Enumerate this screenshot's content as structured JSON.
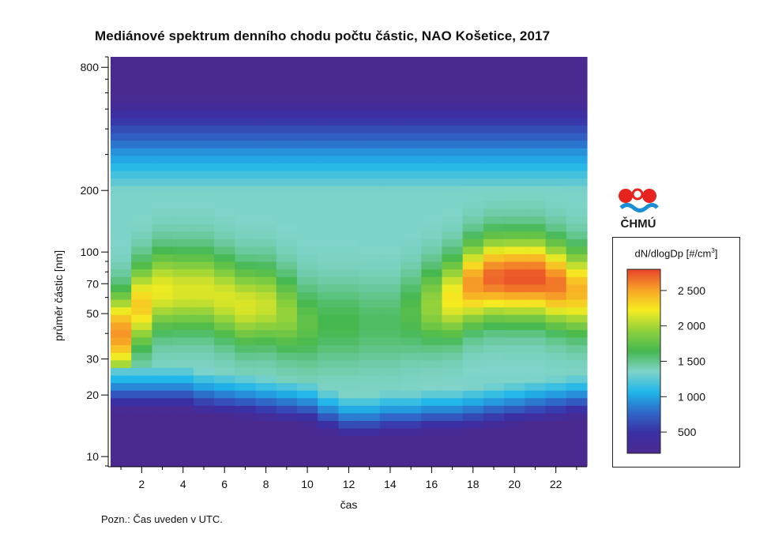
{
  "title": "Mediánové spektrum denního chodu počtu částic, NAO Košetice, 2017",
  "note": "Pozn.: Čas uveden v UTC.",
  "logo_text": "ČHMÚ",
  "legend": {
    "title_main": "dN/dlogDp [#/cm",
    "title_sup": "3",
    "title_end": "]",
    "ticks": [
      500,
      1000,
      1500,
      2000,
      2500
    ],
    "tick_labels": [
      "500",
      "1 000",
      "1 500",
      "2 000",
      "2 500"
    ],
    "range": [
      200,
      2800
    ]
  },
  "colors": {
    "c0": "#4b2a8f",
    "c1": "#3a2fa5",
    "c2": "#2f68c8",
    "c3": "#1fb6ea",
    "c4": "#7fd3c8",
    "c5": "#46b850",
    "c6": "#8fd13c",
    "c7": "#f5ec20",
    "c8": "#f7a327",
    "c9": "#e8432a"
  },
  "chart_data": {
    "type": "heatmap",
    "title": "Mediánové spektrum denního chodu počtu částic, NAO Košetice, 2017",
    "xlabel": "čas",
    "ylabel": "průměr částic  [nm]",
    "xlim": [
      0.5,
      23.5
    ],
    "ylim": [
      9,
      900
    ],
    "yscale": "log",
    "x_ticks": [
      2,
      4,
      6,
      8,
      10,
      12,
      14,
      16,
      18,
      20,
      22
    ],
    "x_tick_labels": [
      "2",
      "4",
      "6",
      "8",
      "10",
      "12",
      "14",
      "16",
      "18",
      "20",
      "22"
    ],
    "y_ticks": [
      10,
      20,
      30,
      50,
      70,
      100,
      200,
      800
    ],
    "y_tick_labels": [
      "10",
      "20",
      "30",
      "50",
      "70",
      "100",
      "200",
      "800"
    ],
    "colorbar_label": "dN/dlogDp [#/cm3]",
    "hours": [
      1,
      2,
      3,
      4,
      5,
      6,
      7,
      8,
      9,
      10,
      11,
      12,
      13,
      14,
      15,
      16,
      17,
      18,
      19,
      20,
      21,
      22,
      23
    ],
    "hotspot_centers_nm": [
      40,
      55,
      65,
      65,
      65,
      60,
      55,
      55,
      50,
      45,
      45,
      45,
      45,
      45,
      50,
      55,
      60,
      70,
      75,
      75,
      75,
      70,
      65
    ],
    "hotspot_peaks": [
      2550,
      2350,
      2200,
      2150,
      2150,
      2150,
      2150,
      2100,
      1950,
      1750,
      1650,
      1650,
      1600,
      1600,
      1700,
      1950,
      2250,
      2550,
      2700,
      2750,
      2750,
      2650,
      2450
    ],
    "lower_edges_nm": [
      22,
      22,
      22,
      22,
      21,
      20.5,
      20,
      19.5,
      19,
      18.5,
      17,
      16,
      16,
      16.5,
      16.5,
      17,
      17,
      17.5,
      18,
      18.5,
      19,
      19.5,
      20
    ]
  }
}
